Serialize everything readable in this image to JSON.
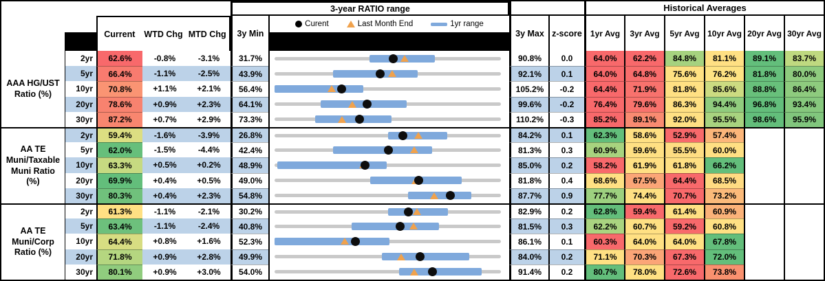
{
  "header": {
    "chart_section_title": "3-year RATIO range",
    "hist_section_title": "Historical Averages",
    "col_current": "Current",
    "col_wtd": "WTD Chg",
    "col_mtd": "MTD Chg",
    "col_3y_min": "3y Min",
    "col_3y_max": "3y Max",
    "col_zscore": "z-score",
    "avg_cols": [
      "1yr Avg",
      "3yr Avg",
      "5yr Avg",
      "10yr Avg",
      "20yr Avg",
      "30yr Avg"
    ],
    "legend": {
      "current": "Curent",
      "last_month_end": "Last Month End",
      "range": "1yr range"
    }
  },
  "colors": {
    "stripe_blue": "#BCD2E8",
    "bar_blue": "#7FA9DC",
    "track_gray": "#C9C9C9",
    "triangle_orange": "#F0A24D",
    "heat_red": "#F8696B",
    "heat_yellow": "#FFE083",
    "heat_green": "#63BE7B"
  },
  "chart_data": {
    "type": "table",
    "description": "Muni ratio dashboard; each row has a 3-year range bullet chart: gray track = 3y min..max, blue bar = 1yr range, black dot = Current, orange triangle = Last Month End.",
    "groups": [
      {
        "label": "AAA HG/UST\nRatio (%)",
        "rows": [
          {
            "tenor": "2yr",
            "current": 62.6,
            "current_color": "#F8696B",
            "wtd": -0.8,
            "mtd": -3.1,
            "min": 31.7,
            "max": 90.8,
            "lme": 65.7,
            "bar_1yr": [
              56.4,
              73.6
            ],
            "z": 0.0,
            "avgs": [
              {
                "v": 64.0,
                "c": "#F8696B"
              },
              {
                "v": 62.2,
                "c": "#F8696B"
              },
              {
                "v": 84.8,
                "c": "#A6D27F"
              },
              {
                "v": 81.1,
                "c": "#FFE083"
              },
              {
                "v": 89.1,
                "c": "#63BE7B"
              },
              {
                "v": 83.7,
                "c": "#BFD980"
              }
            ]
          },
          {
            "tenor": "5yr",
            "current": 66.4,
            "current_color": "#F87B6F",
            "wtd": -1.1,
            "mtd": -2.5,
            "min": 43.9,
            "max": 92.1,
            "lme": 68.9,
            "bar_1yr": [
              56.3,
              74.3
            ],
            "z": 0.1,
            "avgs": [
              {
                "v": 64.0,
                "c": "#F8696B"
              },
              {
                "v": 64.8,
                "c": "#F86D6C"
              },
              {
                "v": 75.6,
                "c": "#FFE182"
              },
              {
                "v": 76.2,
                "c": "#FEE383"
              },
              {
                "v": 81.8,
                "c": "#66BF7B"
              },
              {
                "v": 80.0,
                "c": "#8ECB7E"
              }
            ]
          },
          {
            "tenor": "10yr",
            "current": 70.8,
            "current_color": "#FA9473",
            "wtd": 1.1,
            "mtd": 2.1,
            "min": 56.4,
            "max": 105.2,
            "lme": 68.7,
            "bar_1yr": [
              56.4,
              75.6
            ],
            "z": -0.2,
            "avgs": [
              {
                "v": 64.4,
                "c": "#F8696B"
              },
              {
                "v": 71.9,
                "c": "#F8726D"
              },
              {
                "v": 81.8,
                "c": "#FFE083"
              },
              {
                "v": 85.6,
                "c": "#CCDB81"
              },
              {
                "v": 88.8,
                "c": "#68C07B"
              },
              {
                "v": 86.4,
                "c": "#8ECB7E"
              }
            ]
          },
          {
            "tenor": "20yr",
            "current": 78.6,
            "current_color": "#F8826F",
            "wtd": 0.9,
            "mtd": 2.3,
            "min": 64.1,
            "max": 99.6,
            "lme": 76.3,
            "bar_1yr": [
              71.3,
              84.8
            ],
            "z": -0.2,
            "avgs": [
              {
                "v": 76.4,
                "c": "#F8696B"
              },
              {
                "v": 79.6,
                "c": "#F8736D"
              },
              {
                "v": 86.3,
                "c": "#FFE083"
              },
              {
                "v": 94.4,
                "c": "#90CC7E"
              },
              {
                "v": 96.8,
                "c": "#63BE7B"
              },
              {
                "v": 93.4,
                "c": "#86C87D"
              }
            ]
          },
          {
            "tenor": "30yr",
            "current": 87.2,
            "current_color": "#F8866F",
            "wtd": 0.7,
            "mtd": 2.9,
            "min": 73.3,
            "max": 110.2,
            "lme": 84.3,
            "bar_1yr": [
              79.9,
              92.4
            ],
            "z": -0.3,
            "avgs": [
              {
                "v": 85.2,
                "c": "#F8696B"
              },
              {
                "v": 89.1,
                "c": "#F98B71"
              },
              {
                "v": 92.0,
                "c": "#FFE083"
              },
              {
                "v": 95.5,
                "c": "#A8D37F"
              },
              {
                "v": 98.6,
                "c": "#63BE7B"
              },
              {
                "v": 95.9,
                "c": "#81C67D"
              }
            ]
          }
        ]
      },
      {
        "label": "AA TE\nMuni/Taxable\nMuni Ratio\n(%)",
        "rows": [
          {
            "tenor": "2yr",
            "current": 59.4,
            "current_color": "#DCDE82",
            "wtd": -1.6,
            "mtd": -3.9,
            "min": 26.8,
            "max": 84.2,
            "lme": 63.3,
            "bar_1yr": [
              55.5,
              70.6
            ],
            "z": 0.1,
            "avgs": [
              {
                "v": 62.3,
                "c": "#63BE7B"
              },
              {
                "v": 58.6,
                "c": "#FFE083"
              },
              {
                "v": 52.9,
                "c": "#F8696B"
              },
              {
                "v": 57.4,
                "c": "#FCB67A"
              },
              null,
              null
            ]
          },
          {
            "tenor": "5yr",
            "current": 62.0,
            "current_color": "#66BF7B",
            "wtd": -1.5,
            "mtd": -4.4,
            "min": 42.4,
            "max": 81.3,
            "lme": 66.4,
            "bar_1yr": [
              52.5,
              69.5
            ],
            "z": 0.3,
            "avgs": [
              {
                "v": 60.9,
                "c": "#A8D37F"
              },
              {
                "v": 59.6,
                "c": "#FFE083"
              },
              {
                "v": 55.5,
                "c": "#FEDD82"
              },
              {
                "v": 60.0,
                "c": "#FFE083"
              },
              null,
              null
            ]
          },
          {
            "tenor": "10yr",
            "current": 63.3,
            "current_color": "#C6DA81",
            "wtd": 0.5,
            "mtd": 0.2,
            "min": 48.9,
            "max": 85.0,
            "lme": 63.1,
            "bar_1yr": [
              49.3,
              66.8
            ],
            "z": 0.2,
            "avgs": [
              {
                "v": 58.2,
                "c": "#F8696B"
              },
              {
                "v": 61.9,
                "c": "#FFE083"
              },
              {
                "v": 61.8,
                "c": "#FFE083"
              },
              {
                "v": 66.2,
                "c": "#63BE7B"
              },
              null,
              null
            ]
          },
          {
            "tenor": "20yr",
            "current": 69.9,
            "current_color": "#63BE7B",
            "wtd": 0.4,
            "mtd": 0.5,
            "min": 49.0,
            "max": 81.8,
            "lme": 69.4,
            "bar_1yr": [
              62.9,
              76.1
            ],
            "z": 0.4,
            "avgs": [
              {
                "v": 68.6,
                "c": "#FFE083"
              },
              {
                "v": 67.5,
                "c": "#FBA577"
              },
              {
                "v": 64.4,
                "c": "#F8696B"
              },
              {
                "v": 68.5,
                "c": "#FFDB82"
              },
              null,
              null
            ]
          },
          {
            "tenor": "30yr",
            "current": 80.3,
            "current_color": "#70C17C",
            "wtd": 0.4,
            "mtd": 2.3,
            "min": 54.8,
            "max": 87.7,
            "lme": 78.0,
            "bar_1yr": [
              74.2,
              83.4
            ],
            "z": 0.9,
            "avgs": [
              {
                "v": 77.7,
                "c": "#9DD07F"
              },
              {
                "v": 74.4,
                "c": "#FFE083"
              },
              {
                "v": 70.7,
                "c": "#F8696B"
              },
              {
                "v": 73.2,
                "c": "#FBBA7A"
              },
              null,
              null
            ]
          }
        ]
      },
      {
        "label": "AA TE\nMuni/Corp\nRatio (%)",
        "rows": [
          {
            "tenor": "2yr",
            "current": 61.3,
            "current_color": "#FFE083",
            "wtd": -1.1,
            "mtd": -2.1,
            "min": 30.2,
            "max": 82.9,
            "lme": 63.4,
            "bar_1yr": [
              56.6,
              70.6
            ],
            "z": 0.2,
            "avgs": [
              {
                "v": 62.8,
                "c": "#63BE7B"
              },
              {
                "v": 59.4,
                "c": "#F8696B"
              },
              {
                "v": 61.4,
                "c": "#FFE083"
              },
              {
                "v": 60.9,
                "c": "#FBB279"
              },
              null,
              null
            ]
          },
          {
            "tenor": "5yr",
            "current": 63.4,
            "current_color": "#6DC07C",
            "wtd": -1.1,
            "mtd": -2.4,
            "min": 40.8,
            "max": 81.5,
            "lme": 65.8,
            "bar_1yr": [
              54.7,
              70.3
            ],
            "z": 0.3,
            "avgs": [
              {
                "v": 62.2,
                "c": "#AAD480"
              },
              {
                "v": 60.7,
                "c": "#FFE083"
              },
              {
                "v": 59.2,
                "c": "#F8696B"
              },
              {
                "v": 60.8,
                "c": "#FFE083"
              },
              null,
              null
            ]
          },
          {
            "tenor": "10yr",
            "current": 64.4,
            "current_color": "#D7DD82",
            "wtd": 0.8,
            "mtd": 1.6,
            "min": 52.3,
            "max": 86.1,
            "lme": 62.8,
            "bar_1yr": [
              52.3,
              69.5
            ],
            "z": 0.1,
            "avgs": [
              {
                "v": 60.3,
                "c": "#F8696B"
              },
              {
                "v": 64.0,
                "c": "#FFE083"
              },
              {
                "v": 64.0,
                "c": "#FFE083"
              },
              {
                "v": 67.8,
                "c": "#63BE7B"
              },
              null,
              null
            ]
          },
          {
            "tenor": "20yr",
            "current": 71.8,
            "current_color": "#B5D680",
            "wtd": 0.9,
            "mtd": 2.8,
            "min": 49.9,
            "max": 84.0,
            "lme": 69.0,
            "bar_1yr": [
              66.1,
              79.2
            ],
            "z": 0.2,
            "avgs": [
              {
                "v": 71.1,
                "c": "#FFE083"
              },
              {
                "v": 70.3,
                "c": "#FBA577"
              },
              {
                "v": 67.3,
                "c": "#F8696B"
              },
              {
                "v": 72.0,
                "c": "#63BE7B"
              },
              null,
              null
            ]
          },
          {
            "tenor": "30yr",
            "current": 80.1,
            "current_color": "#90CC7E",
            "wtd": 0.9,
            "mtd": 3.0,
            "min": 54.0,
            "max": 91.4,
            "lme": 77.1,
            "bar_1yr": [
              74.6,
              88.2
            ],
            "z": 0.2,
            "avgs": [
              {
                "v": 80.7,
                "c": "#63BE7B"
              },
              {
                "v": 78.0,
                "c": "#FFE083"
              },
              {
                "v": 72.6,
                "c": "#F8696B"
              },
              {
                "v": 73.8,
                "c": "#F9916F"
              },
              null,
              null
            ]
          }
        ]
      }
    ]
  }
}
